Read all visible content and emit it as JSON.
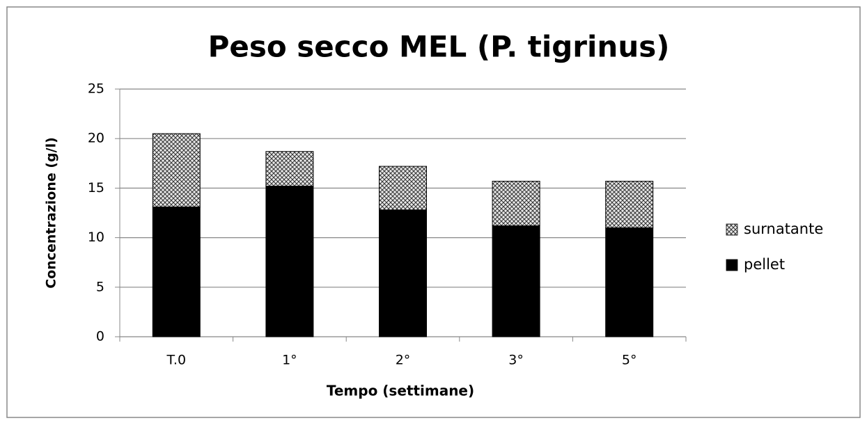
{
  "chart_data": {
    "type": "stacked_bar",
    "title": "Peso secco MEL (P. tigrinus)",
    "x_label": "Tempo (settimane)",
    "y_label": "Concentrazione (g/l)",
    "categories": [
      "T.0",
      "1°",
      "2°",
      "3°",
      "5°"
    ],
    "series": [
      {
        "name": "pellet",
        "color": "#000000",
        "values": [
          13.1,
          15.2,
          12.8,
          11.2,
          11.0
        ]
      },
      {
        "name": "surnatante",
        "color": "#9a9a9a",
        "pattern": "crosshatch",
        "values": [
          7.4,
          3.5,
          4.4,
          4.5,
          4.7
        ]
      }
    ],
    "ylim": [
      0,
      25
    ],
    "yticks": [
      0,
      5,
      10,
      15,
      20,
      25
    ],
    "grid": true,
    "legend": "right"
  }
}
